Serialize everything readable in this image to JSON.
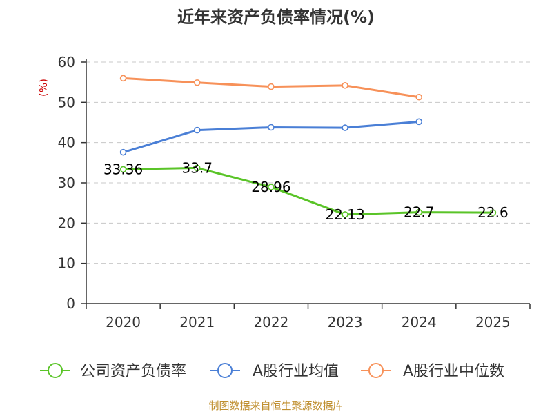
{
  "chart_data": {
    "type": "line",
    "title": "近年来资产负债率情况(%)",
    "ylabel": "(%)",
    "xlabel": "",
    "categories": [
      "2020",
      "2021",
      "2022",
      "2023",
      "2024",
      "2025"
    ],
    "ylim": [
      0,
      60
    ],
    "yticks": [
      0,
      10,
      20,
      30,
      40,
      50,
      60
    ],
    "grid": true,
    "legend_position": "bottom",
    "series": [
      {
        "name": "公司资产负债率",
        "color": "#5ac428",
        "values": [
          33.36,
          33.7,
          28.96,
          22.13,
          22.7,
          22.6
        ],
        "labels": [
          "33.36",
          "33.7",
          "28.96",
          "22.13",
          "22.7",
          "22.6"
        ]
      },
      {
        "name": "A股行业均值",
        "color": "#4a7fd6",
        "values": [
          37.6,
          43.1,
          43.8,
          43.7,
          45.2,
          null
        ]
      },
      {
        "name": "A股行业中位数",
        "color": "#f79159",
        "values": [
          56.0,
          54.9,
          53.9,
          54.2,
          51.3,
          null
        ]
      }
    ],
    "source": "制图数据来自恒生聚源数据库"
  }
}
